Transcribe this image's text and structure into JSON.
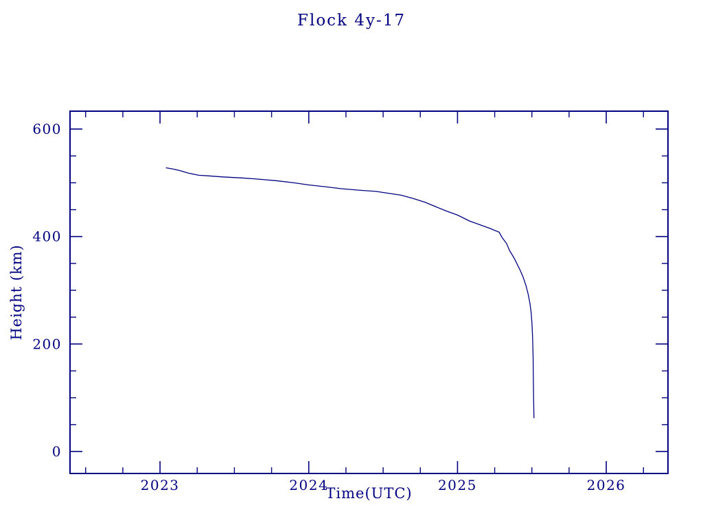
{
  "colors": {
    "accent": "#000080",
    "background": "#ffffff"
  },
  "chart_data": {
    "type": "line",
    "title": "Flock 4y-17",
    "xlabel": "Time(UTC)",
    "ylabel": "Height (km)",
    "xlim": [
      2022.395,
      2026.415
    ],
    "ylim": [
      -40.9,
      633.3
    ],
    "x_ticks_major": [
      2023,
      2024,
      2025,
      2026
    ],
    "x_minor_step": 0.25,
    "y_ticks_major": [
      0,
      200,
      400,
      600
    ],
    "y_minor_step": 50,
    "grid": false,
    "legend": "none",
    "line_color": "#000080",
    "series": [
      {
        "name": "Flock 4y-17",
        "points": [
          [
            2023.04,
            528
          ],
          [
            2023.08,
            526
          ],
          [
            2023.13,
            523
          ],
          [
            2023.19,
            518
          ],
          [
            2023.26,
            514
          ],
          [
            2023.32,
            513
          ],
          [
            2023.42,
            511
          ],
          [
            2023.55,
            509
          ],
          [
            2023.65,
            507
          ],
          [
            2023.78,
            504
          ],
          [
            2023.9,
            500
          ],
          [
            2024.0,
            496
          ],
          [
            2024.1,
            493
          ],
          [
            2024.22,
            489
          ],
          [
            2024.35,
            486
          ],
          [
            2024.45,
            484
          ],
          [
            2024.55,
            480
          ],
          [
            2024.62,
            477
          ],
          [
            2024.7,
            471
          ],
          [
            2024.78,
            464
          ],
          [
            2024.85,
            456
          ],
          [
            2024.92,
            448
          ],
          [
            2025.0,
            440
          ],
          [
            2025.08,
            429
          ],
          [
            2025.15,
            422
          ],
          [
            2025.22,
            415
          ],
          [
            2025.28,
            408
          ],
          [
            2025.3,
            398
          ],
          [
            2025.33,
            387
          ],
          [
            2025.35,
            374
          ],
          [
            2025.38,
            360
          ],
          [
            2025.4,
            349
          ],
          [
            2025.42,
            338
          ],
          [
            2025.44,
            325
          ],
          [
            2025.46,
            309
          ],
          [
            2025.475,
            293
          ],
          [
            2025.487,
            276
          ],
          [
            2025.495,
            258
          ],
          [
            2025.5,
            240
          ],
          [
            2025.505,
            212
          ],
          [
            2025.508,
            178
          ],
          [
            2025.51,
            130
          ],
          [
            2025.512,
            95
          ],
          [
            2025.514,
            62
          ]
        ]
      }
    ]
  }
}
